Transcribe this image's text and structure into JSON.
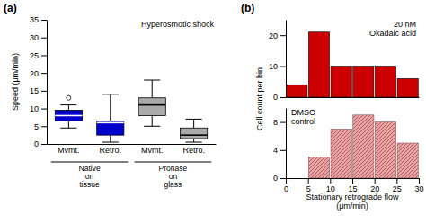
{
  "chart_data": [
    {
      "type": "box",
      "title": "Hyperosmotic shock",
      "ylabel": "Speed (μm/min)",
      "annotations": [
        "(a)"
      ],
      "categories": [
        "Mvmt.",
        "Retro.",
        "Mvmt.",
        "Retro."
      ],
      "groups": [
        "Native\non\ntissue",
        "Pronase\non\nglass"
      ],
      "boxes": [
        {
          "color": "#0000cc",
          "median": 8.0,
          "q1": 6.5,
          "q3": 9.5,
          "whisker_low": 4.5,
          "whisker_high": 11.0,
          "outliers": [
            13.0
          ]
        },
        {
          "color": "#0000cc",
          "median": 6.0,
          "q1": 2.5,
          "q3": 6.5,
          "whisker_low": 0.5,
          "whisker_high": 14.0,
          "outliers": []
        },
        {
          "color": "#aaaaaa",
          "median": 11.0,
          "q1": 8.0,
          "q3": 13.0,
          "whisker_low": 5.0,
          "whisker_high": 18.0,
          "outliers": []
        },
        {
          "color": "#aaaaaa",
          "median": 2.5,
          "q1": 1.5,
          "q3": 4.5,
          "whisker_low": 0.5,
          "whisker_high": 7.0,
          "outliers": []
        }
      ],
      "ylim": [
        0,
        35
      ],
      "yticks": [
        0,
        5,
        10,
        15,
        20,
        25,
        30,
        35
      ]
    },
    {
      "type": "bar",
      "title": "20 nM\nOkadaic acid",
      "annotations": [
        "(b)"
      ],
      "x": [
        2.5,
        7.5,
        12.5,
        17.5,
        22.5,
        27.5
      ],
      "values": [
        4,
        21,
        10,
        10,
        10,
        6
      ],
      "color": "#cc0000",
      "xlim": [
        0,
        30
      ],
      "ylim": [
        0,
        25
      ],
      "yticks": [
        0,
        10,
        20
      ],
      "tick_labels": "y"
    },
    {
      "type": "bar",
      "title": "DMSO\ncontrol",
      "xlabel": "Stationary retrograde flow\n(μm/min)",
      "ylabel": "Cell count per bin",
      "x": [
        2.5,
        7.5,
        12.5,
        17.5,
        22.5,
        27.5
      ],
      "values": [
        0,
        3,
        7,
        9,
        8,
        5
      ],
      "color": "#f0a0a0",
      "xlim": [
        0,
        30
      ],
      "xticks": [
        0,
        5,
        10,
        15,
        20,
        25,
        30
      ],
      "ylim": [
        0,
        10
      ],
      "yticks": [
        0,
        4,
        8
      ]
    }
  ]
}
